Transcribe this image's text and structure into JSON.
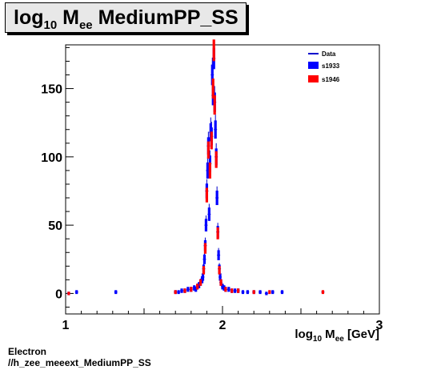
{
  "title": {
    "main": "log",
    "sub1": "10",
    "mid": " M",
    "sub2": "ee",
    "rest": " MediumPP_SS"
  },
  "footer": {
    "line1": "Electron",
    "line2": "//h_zee_meeext_MediumPP_SS"
  },
  "colors": {
    "data": "#0000cc",
    "s1933": "#0000ff",
    "s1946": "#ff0000",
    "title_bg": "#e8e8e8"
  },
  "chart_data": {
    "type": "scatter",
    "title": "log10 Mee MediumPP_SS",
    "xlabel": {
      "base": "log",
      "sub1": "10",
      "mid": " M",
      "sub2": "ee",
      "unit": " [GeV]"
    },
    "ylabel": "",
    "xlim": [
      1,
      3
    ],
    "ylim": [
      -15,
      182
    ],
    "xticks": [
      1,
      2,
      3
    ],
    "yticks": [
      0,
      50,
      100,
      150
    ],
    "grid": false,
    "legend": {
      "placement": "top-right",
      "entries": [
        "Data",
        "s1933",
        "s1946"
      ]
    },
    "series": [
      {
        "name": "Data",
        "style": "errorbar",
        "x": [
          1.02,
          1.07,
          1.32,
          1.7,
          1.72,
          1.74,
          1.76,
          1.78,
          1.8,
          1.82,
          1.83,
          1.84,
          1.85,
          1.86,
          1.87,
          1.875,
          1.88,
          1.885,
          1.89,
          1.895,
          1.9,
          1.905,
          1.91,
          1.915,
          1.92,
          1.925,
          1.93,
          1.935,
          1.94,
          1.945,
          1.95,
          1.955,
          1.96,
          1.965,
          1.97,
          1.975,
          1.98,
          1.985,
          1.99,
          2.0,
          2.01,
          2.02,
          2.04,
          2.06,
          2.08,
          2.1,
          2.13,
          2.16,
          2.2,
          2.24,
          2.28,
          2.32,
          2.38,
          2.64
        ],
        "y": [
          0,
          1,
          1,
          1,
          1,
          2,
          2,
          3,
          3,
          4,
          3,
          5,
          6,
          8,
          10,
          12,
          18,
          25,
          35,
          50,
          75,
          90,
          108,
          58,
          95,
          118,
          115,
          160,
          145,
          172,
          140,
          120,
          100,
          70,
          45,
          28,
          18,
          12,
          8,
          5,
          4,
          3,
          3,
          2,
          2,
          2,
          1,
          1,
          1,
          1,
          0,
          1,
          1,
          1
        ]
      },
      {
        "name": "s1933",
        "style": "fill",
        "x": [
          1.02,
          1.07,
          1.32,
          1.7,
          1.72,
          1.74,
          1.76,
          1.78,
          1.8,
          1.82,
          1.83,
          1.84,
          1.85,
          1.86,
          1.87,
          1.875,
          1.88,
          1.885,
          1.89,
          1.895,
          1.9,
          1.905,
          1.91,
          1.915,
          1.92,
          1.925,
          1.93,
          1.935,
          1.94,
          1.945,
          1.95,
          1.955,
          1.96,
          1.965,
          1.97,
          1.975,
          1.98,
          1.985,
          1.99,
          2.0,
          2.01,
          2.02,
          2.04,
          2.06,
          2.08,
          2.1,
          2.13,
          2.16,
          2.2,
          2.24,
          2.28,
          2.32,
          2.38
        ],
        "y": [
          0,
          1,
          1,
          1,
          1,
          2,
          2,
          3,
          3,
          4,
          3,
          5,
          6,
          8,
          10,
          12,
          18,
          25,
          35,
          50,
          75,
          90,
          108,
          58,
          95,
          118,
          115,
          160,
          145,
          172,
          140,
          120,
          100,
          70,
          45,
          28,
          18,
          12,
          8,
          5,
          4,
          3,
          3,
          2,
          2,
          2,
          1,
          1,
          1,
          1,
          0,
          1,
          1
        ]
      },
      {
        "name": "s1946",
        "style": "fill",
        "x": [
          1.02,
          1.7,
          1.76,
          1.8,
          1.84,
          1.86,
          1.88,
          1.89,
          1.9,
          1.91,
          1.92,
          1.93,
          1.94,
          1.945,
          1.95,
          1.96,
          1.97,
          1.98,
          1.99,
          2.02,
          2.06,
          2.1,
          2.2,
          2.3,
          2.64
        ],
        "y": [
          0,
          1,
          2,
          3,
          5,
          8,
          17,
          33,
          72,
          105,
          90,
          112,
          150,
          178,
          138,
          98,
          44,
          17,
          8,
          3,
          2,
          2,
          1,
          1,
          1
        ]
      }
    ]
  }
}
